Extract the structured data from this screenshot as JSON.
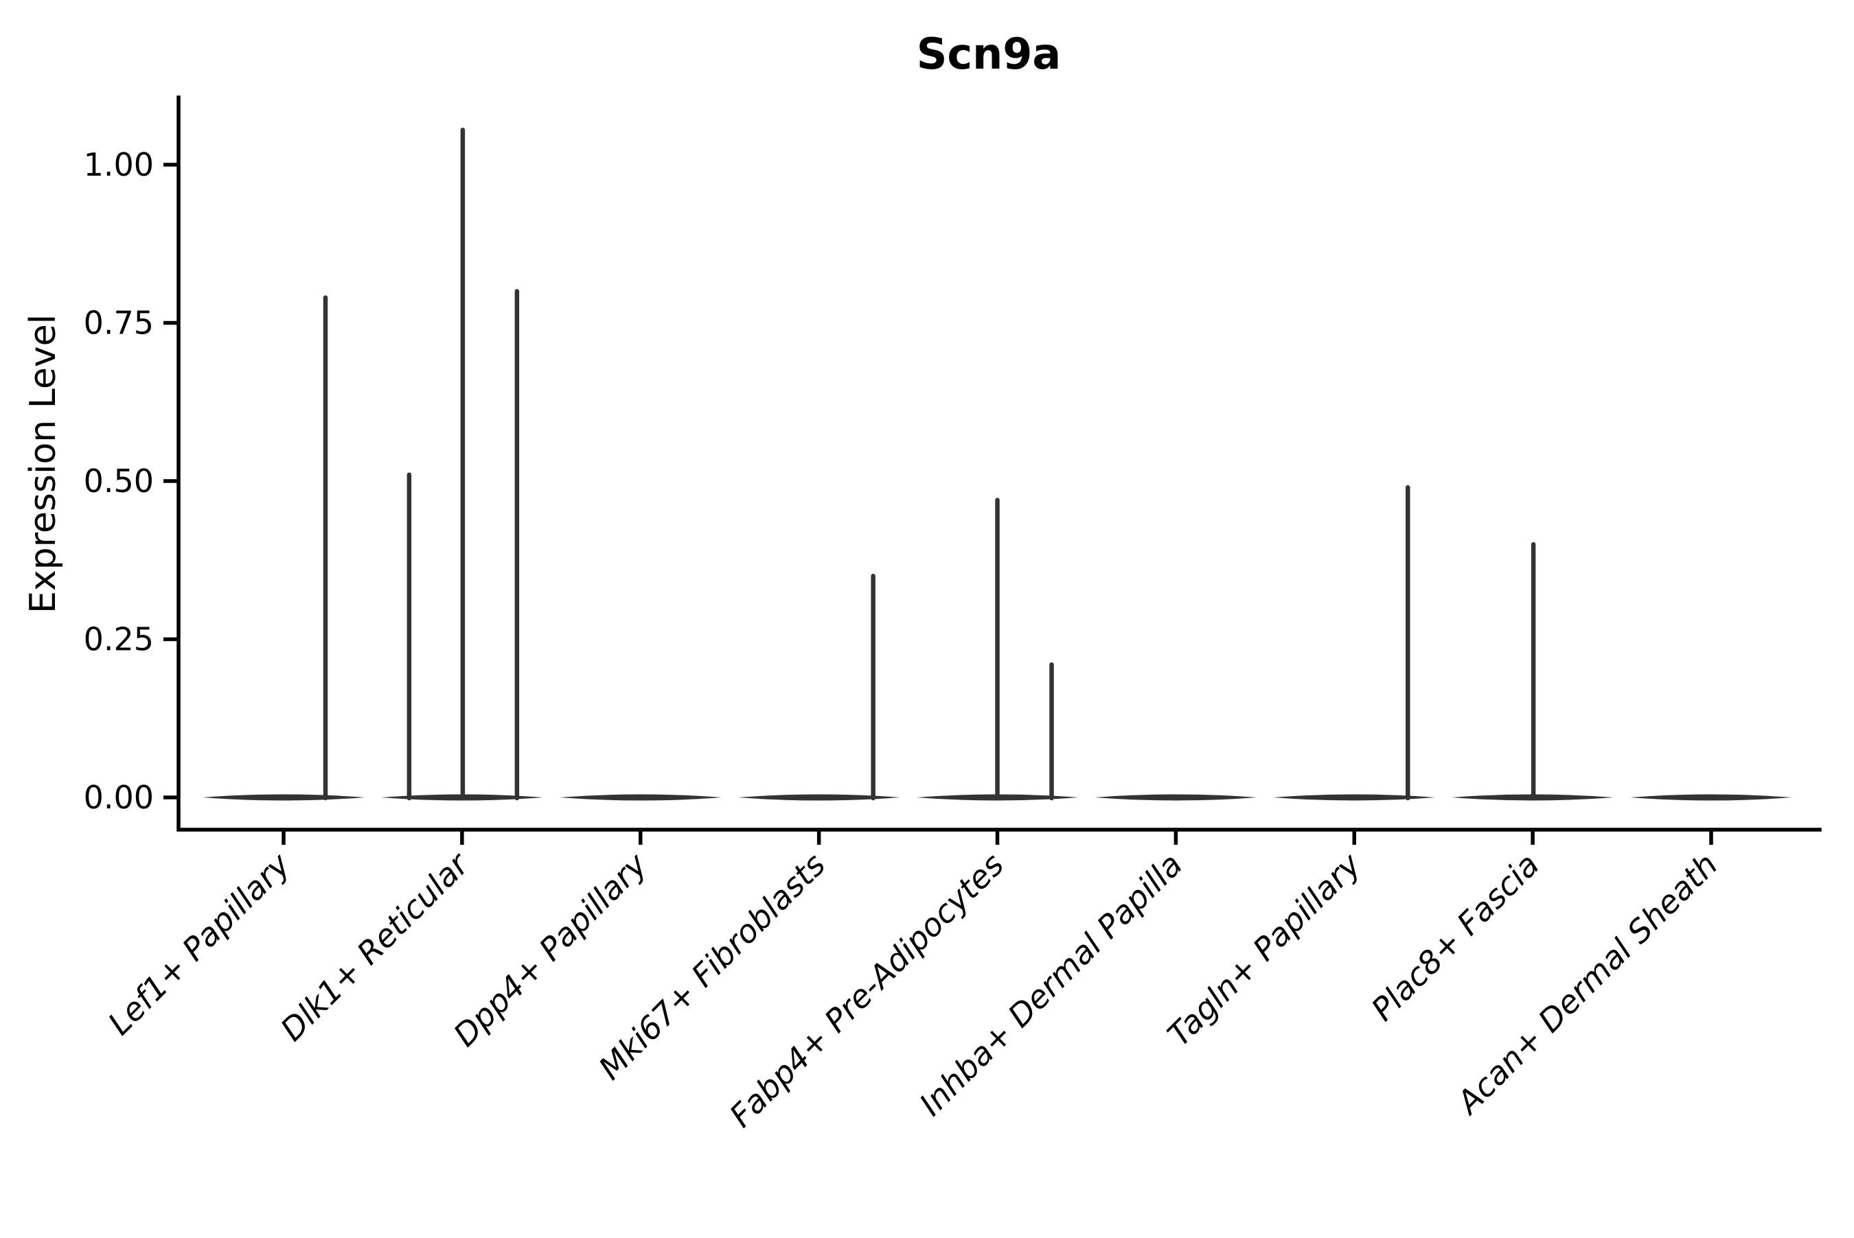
{
  "chart_data": {
    "type": "violin",
    "title": "Scn9a",
    "xlabel": "",
    "ylabel": "Expression Level",
    "grid": false,
    "legend": "none",
    "background": "#ffffff",
    "ylim": [
      -0.051,
      1.106
    ],
    "ytick_values": [
      0.0,
      0.25,
      0.5,
      0.75,
      1.0
    ],
    "ytick_labels": [
      "0.00",
      "0.25",
      "0.50",
      "0.75",
      "1.00"
    ],
    "categories": [
      "Lef1+ Papillary",
      "Dlk1+ Reticular",
      "Dpp4+ Papillary",
      "Mki67+ Fibroblasts",
      "Fabp4+ Pre-Adipocytes",
      "Inhba+ Dermal Papilla",
      "Tagln+ Papillary",
      "Plac8+ Fascia",
      "Acan+ Dermal Sheath"
    ],
    "violins": [
      {
        "category": "Lef1+ Papillary",
        "base_value": 0.0,
        "spikes": [
          {
            "value": 0.79,
            "dx": 61
          }
        ]
      },
      {
        "category": "Dlk1+ Reticular",
        "base_value": 0.0,
        "spikes": [
          {
            "value": 0.51,
            "dx": -77
          },
          {
            "value": 1.055,
            "dx": 1
          },
          {
            "value": 0.8,
            "dx": 80
          }
        ]
      },
      {
        "category": "Dpp4+ Papillary",
        "base_value": 0.0,
        "spikes": []
      },
      {
        "category": "Mki67+ Fibroblasts",
        "base_value": 0.0,
        "spikes": [
          {
            "value": 0.35,
            "dx": 79
          }
        ]
      },
      {
        "category": "Fabp4+ Pre-Adipocytes",
        "base_value": 0.0,
        "spikes": [
          {
            "value": 0.47,
            "dx": 0
          },
          {
            "value": 0.21,
            "dx": 79
          }
        ]
      },
      {
        "category": "Inhba+ Dermal Papilla",
        "base_value": 0.0,
        "spikes": []
      },
      {
        "category": "Tagln+ Papillary",
        "base_value": 0.0,
        "spikes": [
          {
            "value": 0.49,
            "dx": 78
          }
        ]
      },
      {
        "category": "Plac8+ Fascia",
        "base_value": 0.0,
        "spikes": [
          {
            "value": 0.4,
            "dx": 1
          }
        ]
      },
      {
        "category": "Acan+ Dermal Sheath",
        "base_value": 0.0,
        "spikes": []
      }
    ],
    "colors": {
      "axis": "#000000",
      "text": "#000000",
      "violin_stroke": "#333333"
    }
  }
}
